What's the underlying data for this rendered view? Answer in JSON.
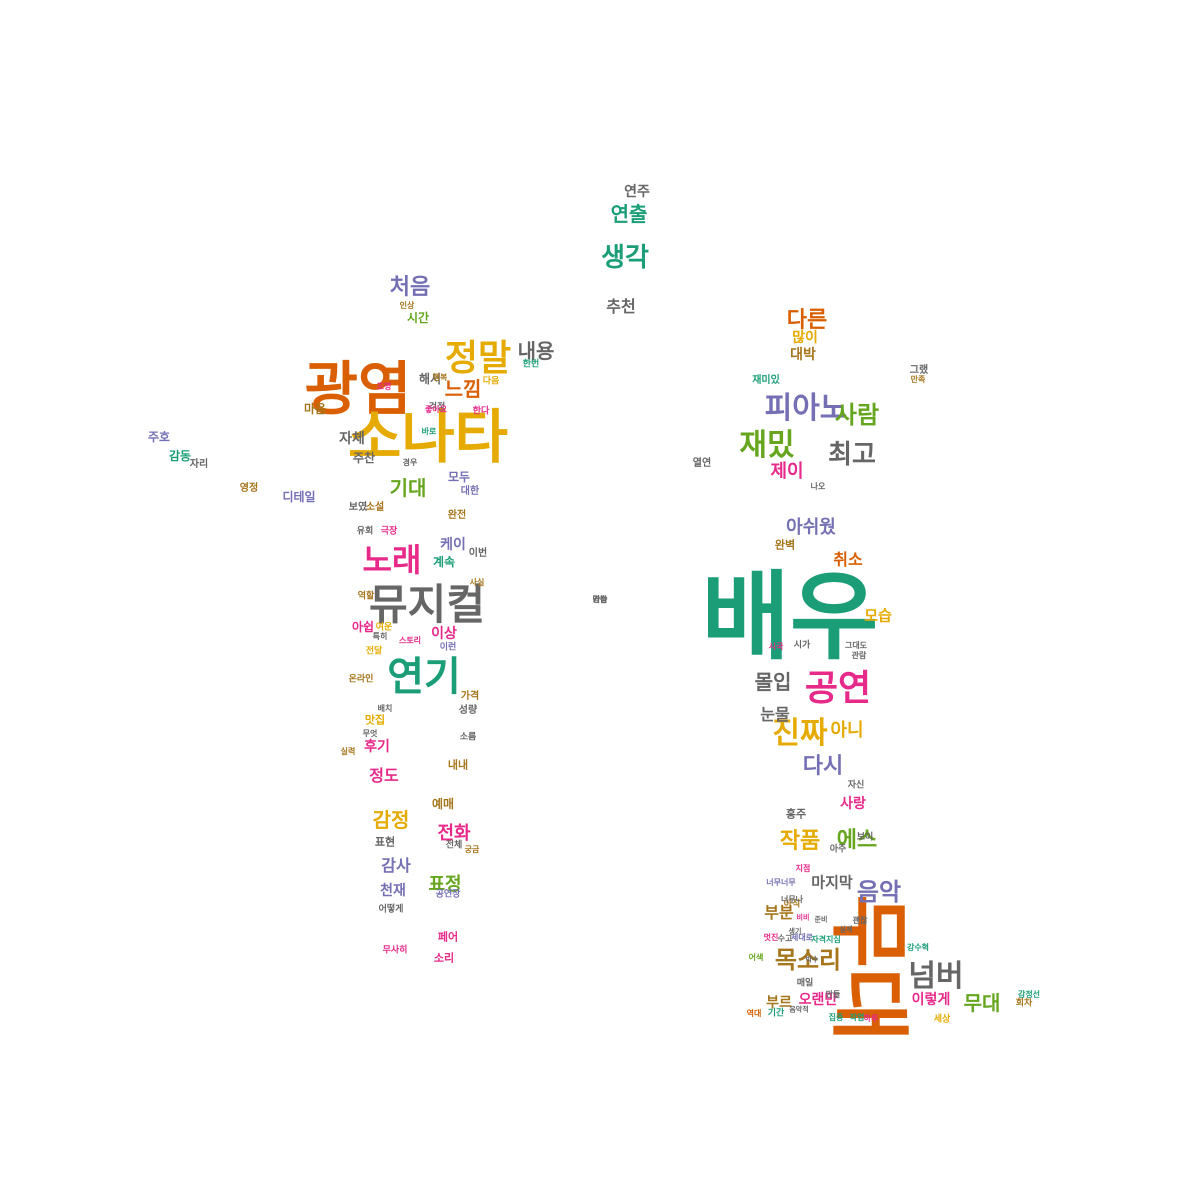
{
  "palette": {
    "teal": "#1b9e77",
    "orange": "#d95f02",
    "purple": "#7570b3",
    "pink": "#e7298a",
    "green": "#66a61e",
    "gold": "#e6ab02",
    "brown": "#a6761d",
    "gray": "#666666"
  },
  "words": [
    {
      "text": "배우",
      "color": "teal",
      "weight": 100
    },
    {
      "text": "무대",
      "color": "orange",
      "weight": 95,
      "vertical": true
    },
    {
      "text": "광염",
      "color": "orange",
      "weight": 82
    },
    {
      "text": "소나타",
      "color": "gold",
      "weight": 80
    },
    {
      "text": "뮤지컬",
      "color": "gray",
      "weight": 68
    },
    {
      "text": "연기",
      "color": "teal",
      "weight": 66
    },
    {
      "text": "공연",
      "color": "pink",
      "weight": 62
    },
    {
      "text": "정말",
      "color": "gold",
      "weight": 55
    },
    {
      "text": "노래",
      "color": "pink",
      "weight": 52
    },
    {
      "text": "피아노",
      "color": "purple",
      "weight": 50
    },
    {
      "text": "재밌",
      "color": "green",
      "weight": 48
    },
    {
      "text": "넘버",
      "color": "gray",
      "weight": 45
    },
    {
      "text": "진짜",
      "color": "gold",
      "weight": 44
    },
    {
      "text": "최고",
      "color": "gray",
      "weight": 42
    },
    {
      "text": "목소리",
      "color": "brown",
      "weight": 40
    },
    {
      "text": "생각",
      "color": "teal",
      "weight": 39
    },
    {
      "text": "음악",
      "color": "purple",
      "weight": 38
    },
    {
      "text": "사람",
      "color": "green",
      "weight": 38
    },
    {
      "text": "작품",
      "color": "gold",
      "weight": 37
    },
    {
      "text": "에스",
      "color": "green",
      "weight": 36
    },
    {
      "text": "다시",
      "color": "purple",
      "weight": 36
    },
    {
      "text": "처음",
      "color": "purple",
      "weight": 34
    },
    {
      "text": "다른",
      "color": "orange",
      "weight": 34
    },
    {
      "text": "기대",
      "color": "green",
      "weight": 33
    },
    {
      "text": "몰입",
      "color": "gray",
      "weight": 33
    },
    {
      "text": "연출",
      "color": "teal",
      "weight": 33
    },
    {
      "text": "제이",
      "color": "pink",
      "weight": 32
    },
    {
      "text": "무대",
      "color": "green",
      "weight": 32
    },
    {
      "text": "느낌",
      "color": "orange",
      "weight": 30
    },
    {
      "text": "아쉬웠",
      "color": "purple",
      "weight": 30
    },
    {
      "text": "감정",
      "color": "gold",
      "weight": 30
    },
    {
      "text": "내용",
      "color": "gray",
      "weight": 29
    },
    {
      "text": "표정",
      "color": "green",
      "weight": 28
    },
    {
      "text": "아니",
      "color": "gold",
      "weight": 28
    },
    {
      "text": "전화",
      "color": "pink",
      "weight": 27
    },
    {
      "text": "눈물",
      "color": "gray",
      "weight": 26
    },
    {
      "text": "부분",
      "color": "brown",
      "weight": 25
    },
    {
      "text": "감사",
      "color": "purple",
      "weight": 25
    },
    {
      "text": "마지막",
      "color": "gray",
      "weight": 24
    },
    {
      "text": "모습",
      "color": "gold",
      "weight": 24
    },
    {
      "text": "취소",
      "color": "orange",
      "weight": 24
    },
    {
      "text": "정도",
      "color": "pink",
      "weight": 24
    },
    {
      "text": "연주",
      "color": "gray",
      "weight": 23
    },
    {
      "text": "추천",
      "color": "gray",
      "weight": 23
    },
    {
      "text": "대박",
      "color": "brown",
      "weight": 22
    },
    {
      "text": "많이",
      "color": "gold",
      "weight": 22
    },
    {
      "text": "이렇게",
      "color": "pink",
      "weight": 22
    },
    {
      "text": "오랜만",
      "color": "pink",
      "weight": 22
    },
    {
      "text": "케이",
      "color": "purple",
      "weight": 22
    },
    {
      "text": "사랑",
      "color": "pink",
      "weight": 22
    },
    {
      "text": "자체",
      "color": "gray",
      "weight": 21
    },
    {
      "text": "후기",
      "color": "pink",
      "weight": 21
    },
    {
      "text": "천재",
      "color": "purple",
      "weight": 20
    },
    {
      "text": "이상",
      "color": "pink",
      "weight": 20
    },
    {
      "text": "부르",
      "color": "brown",
      "weight": 20
    },
    {
      "text": "예매",
      "color": "brown",
      "weight": 19
    },
    {
      "text": "주호",
      "color": "purple",
      "weight": 19
    },
    {
      "text": "감동",
      "color": "teal",
      "weight": 19
    },
    {
      "text": "시간",
      "color": "green",
      "weight": 19
    },
    {
      "text": "해서",
      "color": "gray",
      "weight": 18
    },
    {
      "text": "디테일",
      "color": "purple",
      "weight": 18
    },
    {
      "text": "마음",
      "color": "brown",
      "weight": 18
    },
    {
      "text": "주찬",
      "color": "gray",
      "weight": 18
    },
    {
      "text": "계속",
      "color": "teal",
      "weight": 18
    },
    {
      "text": "모두",
      "color": "purple",
      "weight": 18
    },
    {
      "text": "페어",
      "color": "pink",
      "weight": 17
    },
    {
      "text": "소리",
      "color": "pink",
      "weight": 17
    },
    {
      "text": "표현",
      "color": "gray",
      "weight": 17
    },
    {
      "text": "아쉽",
      "color": "pink",
      "weight": 17
    },
    {
      "text": "맛집",
      "color": "gold",
      "weight": 17
    },
    {
      "text": "내내",
      "color": "brown",
      "weight": 17
    },
    {
      "text": "홍주",
      "color": "gray",
      "weight": 16
    },
    {
      "text": "완벽",
      "color": "brown",
      "weight": 16
    },
    {
      "text": "재미있",
      "color": "teal",
      "weight": 16
    },
    {
      "text": "그랬",
      "color": "gray",
      "weight": 15
    },
    {
      "text": "가격",
      "color": "brown",
      "weight": 15
    },
    {
      "text": "이번",
      "color": "gray",
      "weight": 15
    },
    {
      "text": "대한",
      "color": "purple",
      "weight": 15
    },
    {
      "text": "보였",
      "color": "gray",
      "weight": 15
    },
    {
      "text": "소설",
      "color": "brown",
      "weight": 15
    },
    {
      "text": "완전",
      "color": "brown",
      "weight": 15
    },
    {
      "text": "성량",
      "color": "gray",
      "weight": 14
    },
    {
      "text": "영정",
      "color": "brown",
      "weight": 14
    },
    {
      "text": "자리",
      "color": "gray",
      "weight": 14
    },
    {
      "text": "열연",
      "color": "gray",
      "weight": 14
    },
    {
      "text": "한번",
      "color": "teal",
      "weight": 14
    },
    {
      "text": "역할",
      "color": "brown",
      "weight": 13
    },
    {
      "text": "극장",
      "color": "pink",
      "weight": 13
    },
    {
      "text": "유회",
      "color": "gray",
      "weight": 13
    },
    {
      "text": "소름",
      "color": "gray",
      "weight": 13
    },
    {
      "text": "아직",
      "color": "brown",
      "weight": 13
    },
    {
      "text": "시가",
      "color": "gray",
      "weight": 13
    },
    {
      "text": "자신",
      "color": "gray",
      "weight": 12
    },
    {
      "text": "다음",
      "color": "gold",
      "weight": 12
    },
    {
      "text": "걱정",
      "color": "gray",
      "weight": 12
    },
    {
      "text": "이런",
      "color": "purple",
      "weight": 12
    },
    {
      "text": "공연장",
      "color": "purple",
      "weight": 11
    },
    {
      "text": "전체",
      "color": "gray",
      "weight": 11
    },
    {
      "text": "기간",
      "color": "teal",
      "weight": 11
    },
    {
      "text": "아주",
      "color": "gray",
      "weight": 11
    },
    {
      "text": "보이",
      "color": "gray",
      "weight": 11
    },
    {
      "text": "매일",
      "color": "gray",
      "weight": 11
    },
    {
      "text": "회차",
      "color": "brown",
      "weight": 11
    },
    {
      "text": "세상",
      "color": "gold",
      "weight": 11
    },
    {
      "text": "온라인",
      "color": "brown",
      "weight": 11
    },
    {
      "text": "한다",
      "color": "pink",
      "weight": 11
    },
    {
      "text": "여운",
      "color": "gold",
      "weight": 11
    },
    {
      "text": "전달",
      "color": "gold",
      "weight": 11
    },
    {
      "text": "어떻게",
      "color": "gray",
      "weight": 10
    },
    {
      "text": "무사히",
      "color": "pink",
      "weight": 10
    },
    {
      "text": "너무나",
      "color": "gray",
      "weight": 10
    },
    {
      "text": "행복",
      "color": "brown",
      "weight": 10
    },
    {
      "text": "조명",
      "color": "pink",
      "weight": 10
    },
    {
      "text": "인상",
      "color": "brown",
      "weight": 10
    },
    {
      "text": "만족",
      "color": "brown",
      "weight": 10
    },
    {
      "text": "그대도",
      "color": "gray",
      "weight": 10
    },
    {
      "text": "어색",
      "color": "green",
      "weight": 10
    },
    {
      "text": "강수혁",
      "color": "teal",
      "weight": 10
    },
    {
      "text": "감정선",
      "color": "teal",
      "weight": 9
    },
    {
      "text": "자격지심",
      "color": "teal",
      "weight": 9
    },
    {
      "text": "제대로",
      "color": "purple",
      "weight": 9
    },
    {
      "text": "수고",
      "color": "gray",
      "weight": 9
    },
    {
      "text": "역대",
      "color": "orange",
      "weight": 9
    },
    {
      "text": "멋진",
      "color": "pink",
      "weight": 9
    },
    {
      "text": "지점",
      "color": "pink",
      "weight": 9
    },
    {
      "text": "만들",
      "color": "gray",
      "weight": 9
    },
    {
      "text": "관람",
      "color": "gray",
      "weight": 9
    },
    {
      "text": "나오",
      "color": "gray",
      "weight": 9
    },
    {
      "text": "시국",
      "color": "pink",
      "weight": 9
    },
    {
      "text": "스토리",
      "color": "pink",
      "weight": 9
    },
    {
      "text": "좋아요",
      "color": "pink",
      "weight": 9
    },
    {
      "text": "바로",
      "color": "teal",
      "weight": 9
    },
    {
      "text": "실력",
      "color": "brown",
      "weight": 9
    },
    {
      "text": "집중",
      "color": "teal",
      "weight": 9
    },
    {
      "text": "너무너무",
      "color": "purple",
      "weight": 9
    },
    {
      "text": "궁금",
      "color": "brown",
      "weight": 8
    },
    {
      "text": "사실",
      "color": "brown",
      "weight": 8
    },
    {
      "text": "경우",
      "color": "gray",
      "weight": 8
    },
    {
      "text": "특히",
      "color": "gray",
      "weight": 8
    },
    {
      "text": "배치",
      "color": "gray",
      "weight": 8
    },
    {
      "text": "무엇",
      "color": "gray",
      "weight": 8
    },
    {
      "text": "하루",
      "color": "pink",
      "weight": 8
    },
    {
      "text": "괜찮",
      "color": "gray",
      "weight": 8
    },
    {
      "text": "작업",
      "color": "teal",
      "weight": 8
    },
    {
      "text": "생기",
      "color": "gray",
      "weight": 8
    },
    {
      "text": "비비",
      "color": "pink",
      "weight": 8
    },
    {
      "text": "음악적",
      "color": "gray",
      "weight": 8
    },
    {
      "text": "준비",
      "color": "gray",
      "weight": 8
    },
    {
      "text": "박수",
      "color": "gray",
      "weight": 8
    },
    {
      "text": "실제",
      "color": "gray",
      "weight": 8
    },
    {
      "text": "가능",
      "color": "gray",
      "weight": 8
    },
    {
      "text": "연습",
      "color": "gray",
      "weight": 8
    },
    {
      "text": "감탄",
      "color": "gray",
      "weight": 8
    }
  ]
}
